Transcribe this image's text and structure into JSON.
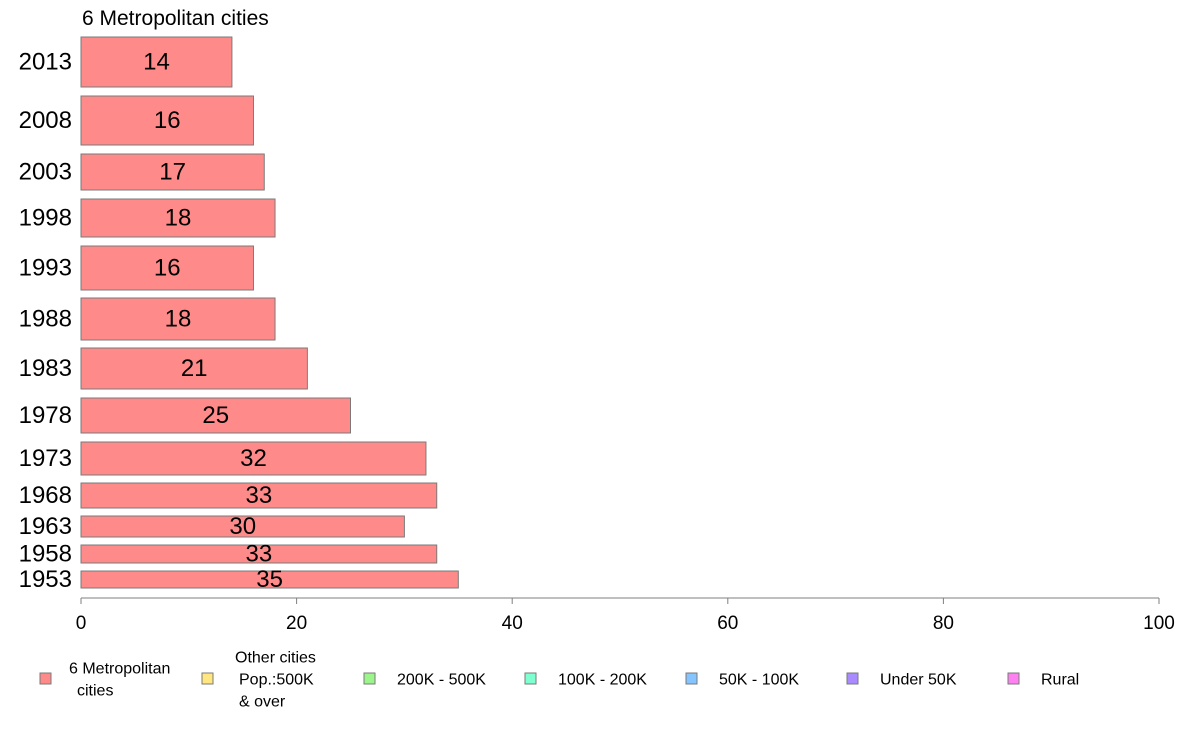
{
  "chart_data": {
    "type": "bar",
    "orientation": "horizontal",
    "title": "6 Metropolitan cities",
    "categories": [
      "2013",
      "2008",
      "2003",
      "1998",
      "1993",
      "1988",
      "1983",
      "1978",
      "1973",
      "1968",
      "1963",
      "1958",
      "1953"
    ],
    "series": [
      {
        "name": "6 Metropolitan cities",
        "color": "#ff8a8a",
        "values": [
          14,
          16,
          17,
          18,
          16,
          18,
          21,
          25,
          32,
          33,
          30,
          33,
          35
        ],
        "labels": [
          "14",
          "16",
          "17",
          "18",
          "16",
          "18",
          "21",
          "25",
          "32",
          "33",
          "30",
          "33",
          "35"
        ]
      }
    ],
    "xlim": [
      0,
      100
    ],
    "xticks": [
      "0",
      "20",
      "40",
      "60",
      "80",
      "100"
    ],
    "grid": false,
    "legend": {
      "placement": "bottom",
      "entries": [
        {
          "lines": [
            "6 Metropolitan",
            "cities"
          ],
          "color": "#ff8a8a"
        },
        {
          "lines": [
            "Other cities",
            "Pop.:500K",
            "& over"
          ],
          "color": "#ffe680"
        },
        {
          "lines": [
            "200K - 500K"
          ],
          "color": "#9cf58a"
        },
        {
          "lines": [
            "100K - 200K"
          ],
          "color": "#80ffd0"
        },
        {
          "lines": [
            "50K - 100K"
          ],
          "color": "#85c4ff"
        },
        {
          "lines": [
            "Under 50K"
          ],
          "color": "#a98aff"
        },
        {
          "lines": [
            "Rural"
          ],
          "color": "#ff80f0"
        }
      ]
    }
  }
}
